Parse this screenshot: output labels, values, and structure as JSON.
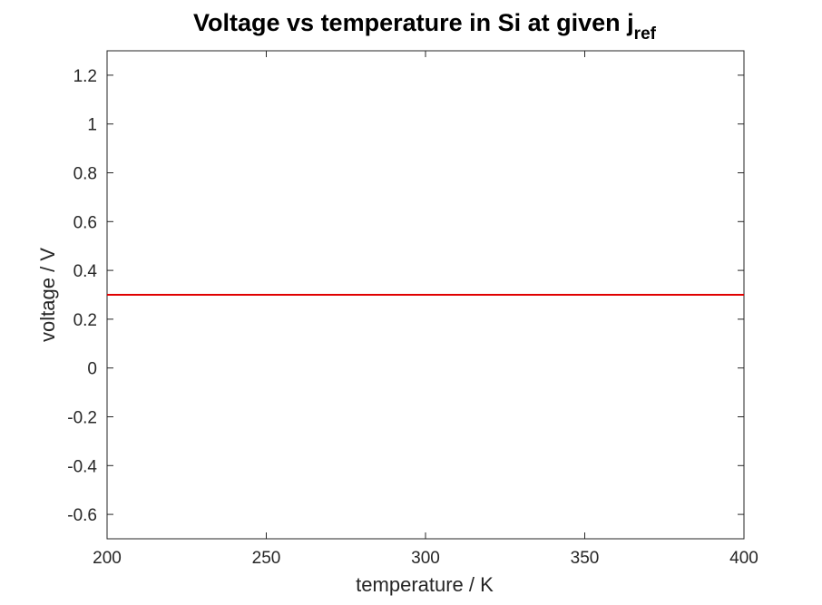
{
  "chart_data": {
    "type": "line",
    "title_main": "Voltage vs temperature in Si at given j",
    "title_subscript": "ref",
    "xlabel": "temperature / K",
    "ylabel": "voltage / V",
    "xlim": [
      200,
      400
    ],
    "ylim": [
      -0.7,
      1.3
    ],
    "x_ticks": [
      200,
      250,
      300,
      350,
      400
    ],
    "x_tick_labels": [
      "200",
      "250",
      "300",
      "350",
      "400"
    ],
    "y_ticks": [
      -0.6,
      -0.4,
      -0.2,
      0,
      0.2,
      0.4,
      0.6,
      0.8,
      1,
      1.2
    ],
    "y_tick_labels": [
      "-0.6",
      "-0.4",
      "-0.2",
      "0",
      "0.2",
      "0.4",
      "0.6",
      "0.8",
      "1",
      "1.2"
    ],
    "grid": false,
    "series": [
      {
        "color": "#e00000",
        "x": [
          200,
          400
        ],
        "y": [
          0.3,
          0.3
        ]
      }
    ]
  }
}
